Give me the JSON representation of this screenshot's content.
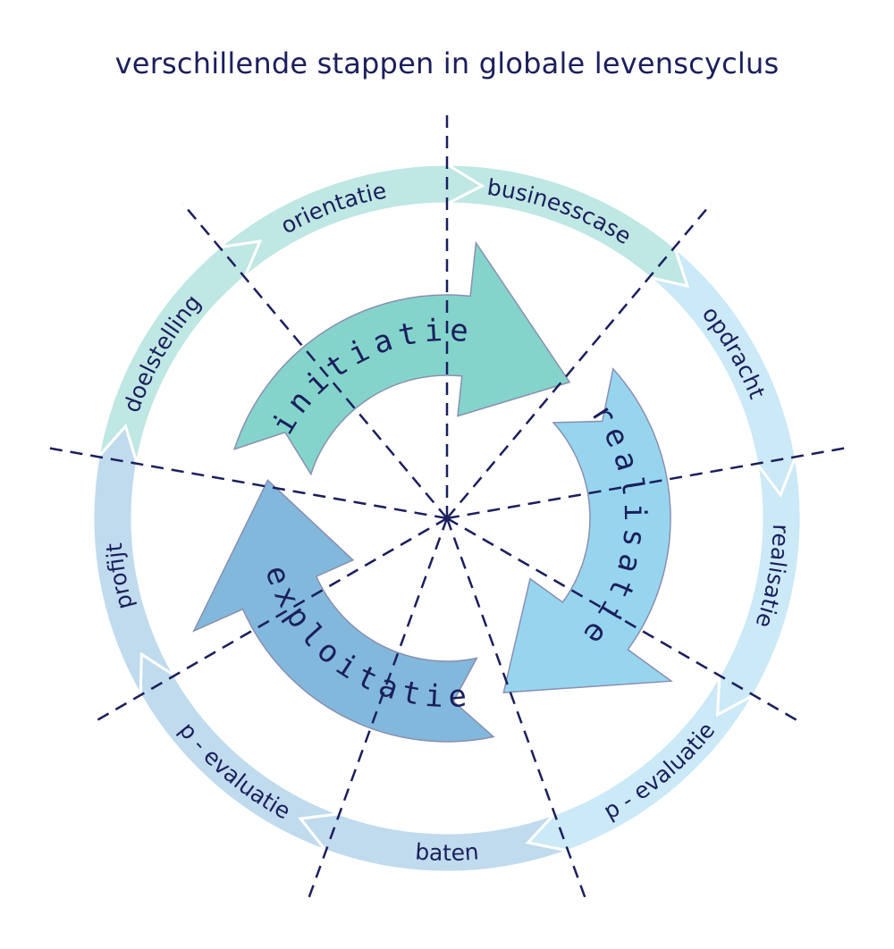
{
  "title": "verschillende stappen in globale levenscyclus",
  "phases": [
    {
      "id": "initiatie",
      "label": "initiatie",
      "color": "#84d4cc"
    },
    {
      "id": "realisatie",
      "label": "realisatie",
      "color": "#97d5ef"
    },
    {
      "id": "exploitatie",
      "label": "exploitatie",
      "color": "#82b8dc"
    }
  ],
  "steps": [
    {
      "label": "businesscase",
      "phase": "initiatie",
      "color": "#bfe7e3"
    },
    {
      "label": "opdracht",
      "phase": "realisatie",
      "color": "#cbe9f6"
    },
    {
      "label": "realisatie",
      "phase": "realisatie",
      "color": "#cbe9f6"
    },
    {
      "label": "p - evaluatie",
      "phase": "realisatie",
      "color": "#cbe9f6"
    },
    {
      "label": "baten",
      "phase": "exploitatie",
      "color": "#c0dbee"
    },
    {
      "label": "p - evaluatie",
      "phase": "exploitatie",
      "color": "#c0dbee"
    },
    {
      "label": "profijt",
      "phase": "exploitatie",
      "color": "#c0dbee"
    },
    {
      "label": "doelstelling",
      "phase": "initiatie",
      "color": "#bfe7e3"
    },
    {
      "label": "orientatie",
      "phase": "initiatie",
      "color": "#bfe7e3"
    }
  ],
  "colors": {
    "text": "#1b1f5c",
    "divider": "#1b1f5c",
    "arrow_stroke": "#8a8fb0"
  }
}
